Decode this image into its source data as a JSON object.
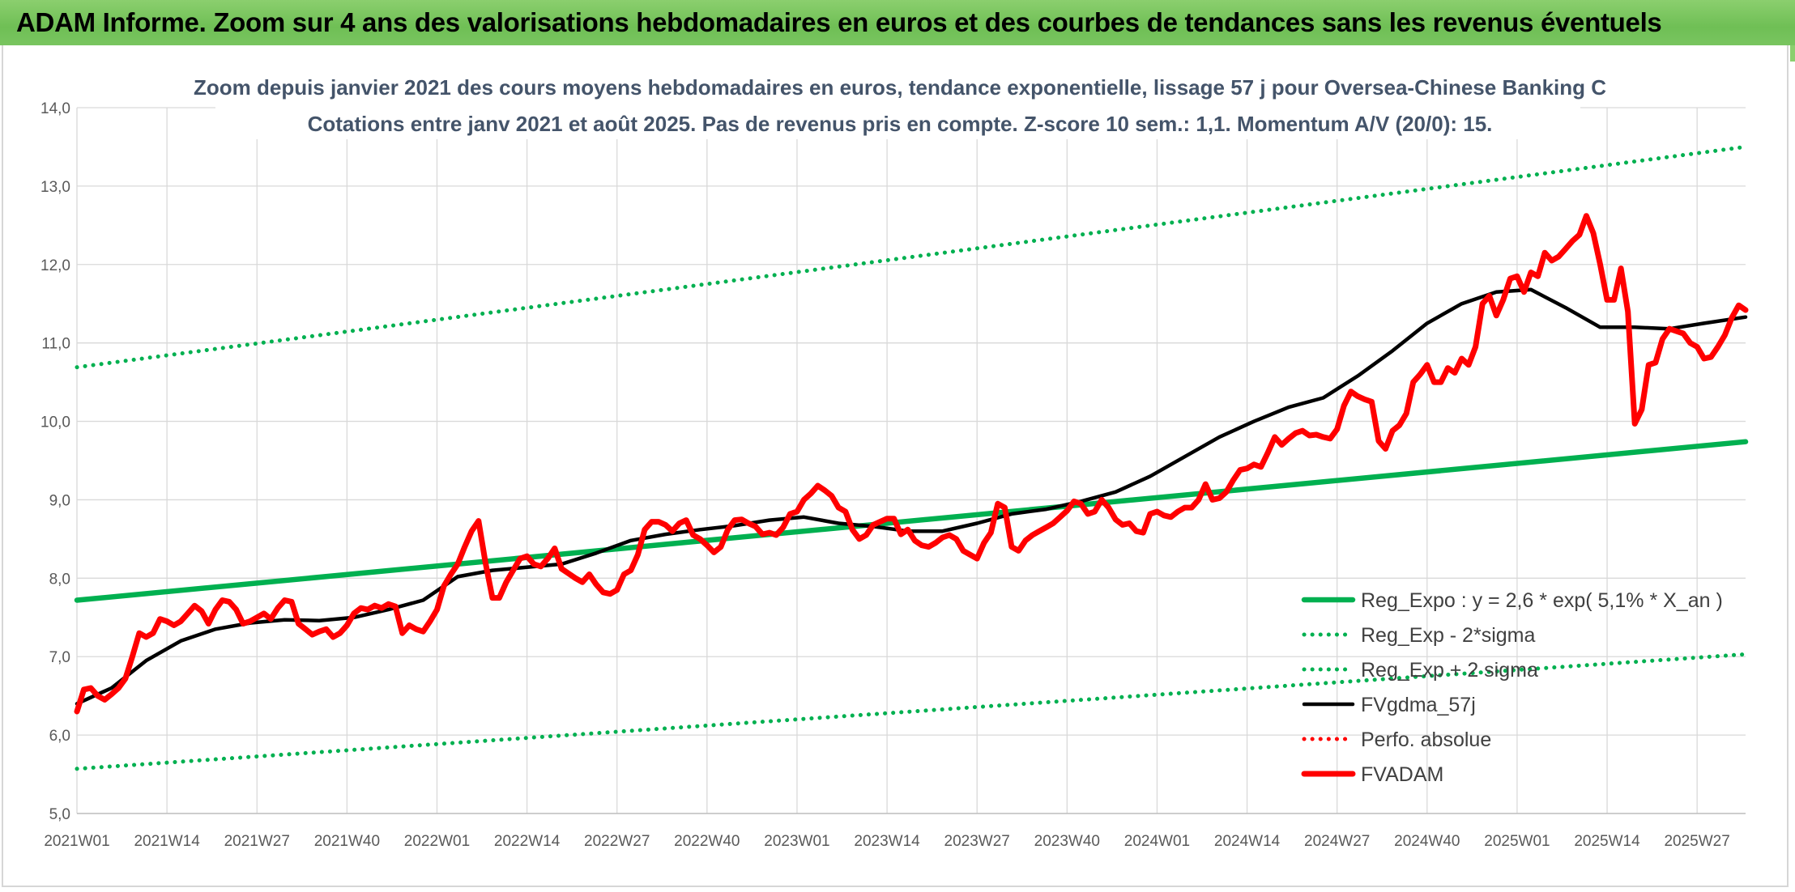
{
  "banner": {
    "title": "ADAM Informe. Zoom sur 4 ans des valorisations hebdomadaires en euros et des courbes de tendances sans les revenus éventuels"
  },
  "chart_data": {
    "type": "line",
    "title": "Zoom depuis janvier 2021 des cours moyens hebdomadaires en euros, tendance exponentielle, lissage 57 j pour Oversea-Chinese Banking C",
    "subtitle": "Cotations entre janv 2021 et août 2025. Pas de revenus pris en compte. Z-score 10 sem.: 1,1. Momentum A/V (20/0): 15.",
    "xlabel": "",
    "ylabel": "",
    "ylim": [
      5.0,
      14.0
    ],
    "yticks": [
      "5,0",
      "6,0",
      "7,0",
      "8,0",
      "9,0",
      "10,0",
      "11,0",
      "12,0",
      "13,0",
      "14,0"
    ],
    "xticks": [
      "2021W01",
      "2021W14",
      "2021W27",
      "2021W40",
      "2022W01",
      "2022W14",
      "2022W27",
      "2022W40",
      "2023W01",
      "2023W14",
      "2023W27",
      "2023W40",
      "2024W01",
      "2024W14",
      "2024W27",
      "2024W40",
      "2025W01",
      "2025W14",
      "2025W27"
    ],
    "grid": true,
    "legend_position": "bottom-right",
    "x_weeks": 242,
    "series": [
      {
        "name": "Reg_Expo : y = 2,6 * exp( 5,1% *  X_an )",
        "style": "solid-thick",
        "color": "#00b050",
        "x": [
          0,
          241
        ],
        "values": [
          7.72,
          9.74
        ]
      },
      {
        "name": "Reg_Exp - 2*sigma",
        "style": "dotted",
        "color": "#00b050",
        "x": [
          0,
          241
        ],
        "values": [
          5.57,
          7.03
        ]
      },
      {
        "name": "Reg_Exp + 2 sigma",
        "style": "dotted",
        "color": "#00b050",
        "x": [
          0,
          241
        ],
        "values": [
          10.69,
          13.5
        ]
      },
      {
        "name": "FVgdma_57j",
        "style": "solid",
        "color": "#000000",
        "x": [
          0,
          5,
          10,
          15,
          20,
          25,
          30,
          35,
          40,
          45,
          50,
          55,
          60,
          65,
          70,
          75,
          80,
          85,
          90,
          95,
          100,
          105,
          110,
          115,
          120,
          125,
          130,
          135,
          140,
          145,
          150,
          155,
          160,
          165,
          170,
          175,
          180,
          185,
          190,
          195,
          200,
          205,
          210,
          215,
          220,
          225,
          230,
          235,
          241
        ],
        "values": [
          6.4,
          6.6,
          6.95,
          7.2,
          7.35,
          7.43,
          7.47,
          7.46,
          7.5,
          7.6,
          7.72,
          8.02,
          8.1,
          8.14,
          8.18,
          8.32,
          8.48,
          8.56,
          8.62,
          8.67,
          8.74,
          8.78,
          8.7,
          8.66,
          8.6,
          8.6,
          8.7,
          8.82,
          8.88,
          8.98,
          9.1,
          9.3,
          9.55,
          9.8,
          10.0,
          10.18,
          10.3,
          10.58,
          10.9,
          11.25,
          11.5,
          11.65,
          11.68,
          11.45,
          11.2,
          11.2,
          11.18,
          11.25,
          11.33
        ]
      },
      {
        "name": "Perfo. absolue",
        "style": "dotted",
        "color": "#ff0000",
        "x": [],
        "values": []
      },
      {
        "name": "FVADAM",
        "style": "solid-thick",
        "color": "#ff0000",
        "x": [
          0,
          1,
          2,
          3,
          4,
          5,
          6,
          7,
          8,
          9,
          10,
          11,
          12,
          13,
          14,
          15,
          16,
          17,
          18,
          19,
          20,
          21,
          22,
          23,
          24,
          25,
          26,
          27,
          28,
          29,
          30,
          31,
          32,
          33,
          34,
          35,
          36,
          37,
          38,
          39,
          40,
          41,
          42,
          43,
          44,
          45,
          46,
          47,
          48,
          49,
          50,
          51,
          52,
          53,
          54,
          55,
          56,
          57,
          58,
          59,
          60,
          61,
          62,
          63,
          64,
          65,
          66,
          67,
          68,
          69,
          70,
          71,
          72,
          73,
          74,
          75,
          76,
          77,
          78,
          79,
          80,
          81,
          82,
          83,
          84,
          85,
          86,
          87,
          88,
          89,
          90,
          91,
          92,
          93,
          94,
          95,
          96,
          97,
          98,
          99,
          100,
          101,
          102,
          103,
          104,
          105,
          106,
          107,
          108,
          109,
          110,
          111,
          112,
          113,
          114,
          115,
          116,
          117,
          118,
          119,
          120,
          121,
          122,
          123,
          124,
          125,
          126,
          127,
          128,
          129,
          130,
          131,
          132,
          133,
          134,
          135,
          136,
          137,
          138,
          139,
          140,
          141,
          142,
          143,
          144,
          145,
          146,
          147,
          148,
          149,
          150,
          151,
          152,
          153,
          154,
          155,
          156,
          157,
          158,
          159,
          160,
          161,
          162,
          163,
          164,
          165,
          166,
          167,
          168,
          169,
          170,
          171,
          172,
          173,
          174,
          175,
          176,
          177,
          178,
          179,
          180,
          181,
          182,
          183,
          184,
          185,
          186,
          187,
          188,
          189,
          190,
          191,
          192,
          193,
          194,
          195,
          196,
          197,
          198,
          199,
          200,
          201,
          202,
          203,
          204,
          205,
          206,
          207,
          208,
          209,
          210,
          211,
          212,
          213,
          214,
          215,
          216,
          217,
          218,
          219,
          220,
          221,
          222,
          223,
          224,
          225,
          226,
          227,
          228,
          229,
          230,
          231,
          232,
          233,
          234,
          235,
          236,
          237,
          238,
          239,
          240,
          241
        ],
        "values": [
          6.3,
          6.58,
          6.6,
          6.5,
          6.45,
          6.52,
          6.6,
          6.72,
          7.0,
          7.3,
          7.25,
          7.3,
          7.48,
          7.45,
          7.4,
          7.45,
          7.55,
          7.65,
          7.58,
          7.42,
          7.6,
          7.72,
          7.7,
          7.6,
          7.42,
          7.45,
          7.5,
          7.55,
          7.48,
          7.62,
          7.72,
          7.7,
          7.42,
          7.35,
          7.28,
          7.32,
          7.35,
          7.25,
          7.3,
          7.4,
          7.55,
          7.62,
          7.6,
          7.65,
          7.62,
          7.67,
          7.64,
          7.3,
          7.4,
          7.35,
          7.32,
          7.45,
          7.6,
          7.9,
          8.05,
          8.18,
          8.4,
          8.6,
          8.73,
          8.2,
          7.75,
          7.75,
          7.95,
          8.1,
          8.25,
          8.28,
          8.18,
          8.15,
          8.25,
          8.38,
          8.12,
          8.06,
          8.0,
          7.95,
          8.05,
          7.92,
          7.82,
          7.8,
          7.85,
          8.05,
          8.1,
          8.3,
          8.62,
          8.72,
          8.72,
          8.68,
          8.6,
          8.7,
          8.74,
          8.55,
          8.5,
          8.42,
          8.33,
          8.4,
          8.62,
          8.74,
          8.75,
          8.7,
          8.66,
          8.56,
          8.58,
          8.55,
          8.65,
          8.82,
          8.85,
          9.0,
          9.08,
          9.18,
          9.12,
          9.05,
          8.9,
          8.85,
          8.62,
          8.5,
          8.55,
          8.68,
          8.72,
          8.76,
          8.76,
          8.56,
          8.62,
          8.48,
          8.42,
          8.4,
          8.45,
          8.52,
          8.55,
          8.5,
          8.35,
          8.3,
          8.25,
          8.45,
          8.58,
          8.95,
          8.9,
          8.4,
          8.35,
          8.48,
          8.55,
          8.6,
          8.65,
          8.7,
          8.78,
          8.86,
          8.98,
          8.95,
          8.82,
          8.85,
          9.0,
          8.9,
          8.75,
          8.68,
          8.7,
          8.6,
          8.58,
          8.82,
          8.85,
          8.8,
          8.78,
          8.85,
          8.9,
          8.9,
          9.0,
          9.2,
          9.0,
          9.02,
          9.1,
          9.25,
          9.38,
          9.4,
          9.45,
          9.42,
          9.6,
          9.8,
          9.7,
          9.78,
          9.85,
          9.88,
          9.82,
          9.83,
          9.8,
          9.78,
          9.9,
          10.2,
          10.38,
          10.32,
          10.28,
          10.25,
          9.75,
          9.65,
          9.88,
          9.95,
          10.1,
          10.5,
          10.6,
          10.72,
          10.5,
          10.5,
          10.68,
          10.62,
          10.8,
          10.72,
          10.95,
          11.5,
          11.6,
          11.35,
          11.55,
          11.82,
          11.85,
          11.65,
          11.9,
          11.85,
          12.15,
          12.05,
          12.1,
          12.2,
          12.3,
          12.38,
          12.62,
          12.4,
          12.0,
          11.55,
          11.55,
          11.95,
          11.4,
          9.97,
          10.15,
          10.72,
          10.75,
          11.05,
          11.18,
          11.15,
          11.12,
          11.0,
          10.95,
          10.8,
          10.82,
          10.95,
          11.1,
          11.32,
          11.48,
          11.42
        ]
      }
    ]
  }
}
